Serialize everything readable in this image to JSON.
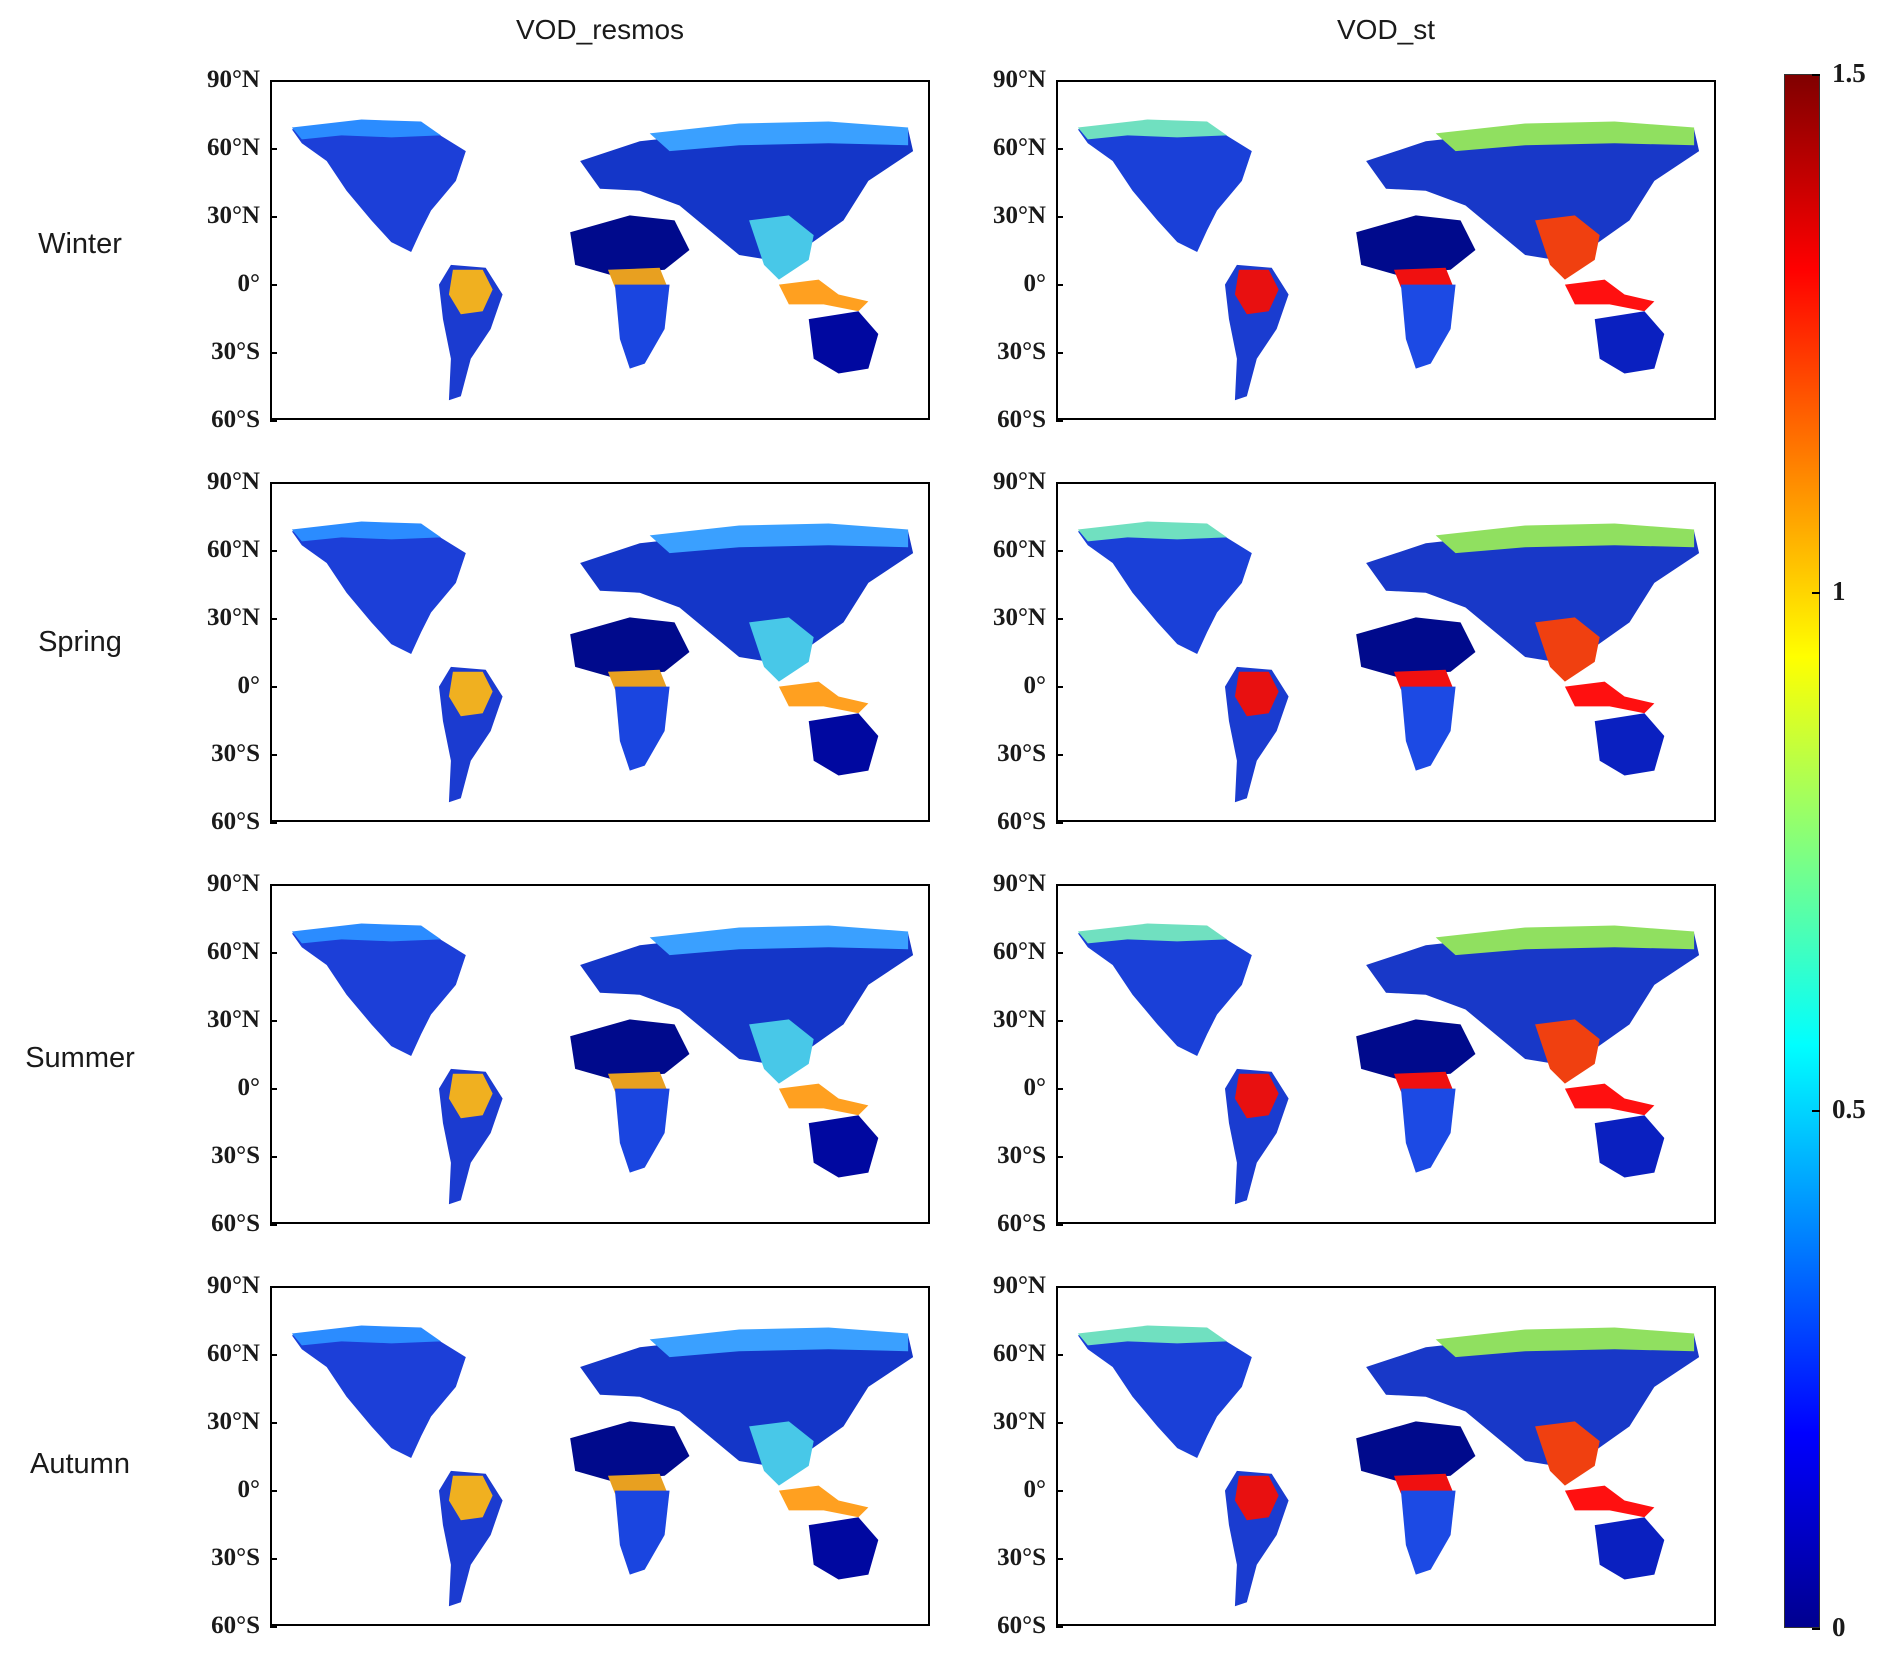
{
  "figure": {
    "columns": [
      {
        "title": "VOD_resmos",
        "key": "resmos"
      },
      {
        "title": "VOD_st",
        "key": "st"
      }
    ],
    "rows": [
      {
        "label": "Winter"
      },
      {
        "label": "Spring"
      },
      {
        "label": "Summer"
      },
      {
        "label": "Autumn"
      }
    ],
    "latitude_ticks": [
      "90°N",
      "60°N",
      "30°N",
      "0°",
      "30°S",
      "60°S"
    ],
    "latitude_range": [
      -60,
      90
    ],
    "colorbar": {
      "ticks": [
        {
          "label": "1.5",
          "value": 1.5
        },
        {
          "label": "1",
          "value": 1
        },
        {
          "label": "0.5",
          "value": 0.5
        },
        {
          "label": "0",
          "value": 0
        }
      ],
      "range": [
        0,
        1.5
      ],
      "colormap": "jet",
      "colors": [
        "#00008f",
        "#0000ff",
        "#0080ff",
        "#00ffff",
        "#80ff80",
        "#ffff00",
        "#ff8000",
        "#ff0000",
        "#800000"
      ]
    },
    "region_colors": {
      "resmos": {
        "north_america": "#1c3fd8",
        "arctic_rim": "#2b8cff",
        "amazon": "#f0b020",
        "south_america": "#1b3bd0",
        "sahara": "#000a8c",
        "central_africa": "#e8a020",
        "south_africa": "#1a45e0",
        "eurasia": "#1436c8",
        "siberia": "#3aa0ff",
        "se_asia": "#48c8e8",
        "indonesia": "#ffa020",
        "australia": "#0008a0"
      },
      "st": {
        "north_america": "#1a40d8",
        "arctic_rim": "#70e0c0",
        "amazon": "#e81010",
        "south_america": "#1a3cd0",
        "sahara": "#000a8c",
        "central_africa": "#f01010",
        "south_africa": "#1c4ae4",
        "eurasia": "#1838c8",
        "siberia": "#90e060",
        "se_asia": "#f04010",
        "indonesia": "#ff1010",
        "australia": "#0a20c0"
      }
    }
  }
}
